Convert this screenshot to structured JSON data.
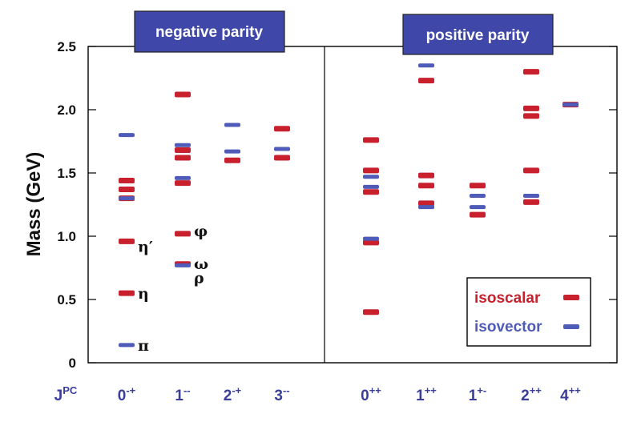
{
  "chart_data": {
    "type": "scatter",
    "ylabel": "Mass (GeV)",
    "ylim": [
      0,
      2.5
    ],
    "yticks": [
      "0",
      "0.5",
      "1.0",
      "1.5",
      "2.0",
      "2.5"
    ],
    "x_axis_label": {
      "main": "J",
      "sup": "PC"
    },
    "panels": [
      {
        "title": "negative parity",
        "title_color": "#3f48a8"
      },
      {
        "title": "positive parity",
        "title_color": "#3f48a8"
      }
    ],
    "categories": [
      {
        "main": "0",
        "sup": "-+"
      },
      {
        "main": "1",
        "sup": "--"
      },
      {
        "main": "2",
        "sup": "-+"
      },
      {
        "main": "3",
        "sup": "--"
      },
      {
        "main": "0",
        "sup": "++"
      },
      {
        "main": "1",
        "sup": "++"
      },
      {
        "main": "1",
        "sup": "+-"
      },
      {
        "main": "2",
        "sup": "++"
      },
      {
        "main": "4",
        "sup": "++"
      }
    ],
    "series": [
      {
        "name": "isoscalar",
        "color": "#c8202c",
        "points": [
          {
            "c": 0,
            "y": 0.55
          },
          {
            "c": 0,
            "y": 0.96
          },
          {
            "c": 0,
            "y": 1.3
          },
          {
            "c": 0,
            "y": 1.37
          },
          {
            "c": 0,
            "y": 1.44
          },
          {
            "c": 1,
            "y": 0.78
          },
          {
            "c": 1,
            "y": 1.02
          },
          {
            "c": 1,
            "y": 1.42
          },
          {
            "c": 1,
            "y": 1.62
          },
          {
            "c": 1,
            "y": 1.68
          },
          {
            "c": 1,
            "y": 2.12
          },
          {
            "c": 2,
            "y": 1.6
          },
          {
            "c": 3,
            "y": 1.62
          },
          {
            "c": 3,
            "y": 1.85
          },
          {
            "c": 4,
            "y": 0.4
          },
          {
            "c": 4,
            "y": 0.95
          },
          {
            "c": 4,
            "y": 1.35
          },
          {
            "c": 4,
            "y": 1.52
          },
          {
            "c": 4,
            "y": 1.76
          },
          {
            "c": 5,
            "y": 1.26
          },
          {
            "c": 5,
            "y": 1.4
          },
          {
            "c": 5,
            "y": 1.48
          },
          {
            "c": 5,
            "y": 2.23
          },
          {
            "c": 6,
            "y": 1.17
          },
          {
            "c": 6,
            "y": 1.4
          },
          {
            "c": 7,
            "y": 1.27
          },
          {
            "c": 7,
            "y": 1.52
          },
          {
            "c": 7,
            "y": 1.95
          },
          {
            "c": 7,
            "y": 2.01
          },
          {
            "c": 7,
            "y": 2.3
          },
          {
            "c": 8,
            "y": 2.04
          }
        ]
      },
      {
        "name": "isovector",
        "color": "#4f5bb8",
        "points": [
          {
            "c": 0,
            "y": 0.14
          },
          {
            "c": 0,
            "y": 1.3
          },
          {
            "c": 0,
            "y": 1.8
          },
          {
            "c": 1,
            "y": 0.77
          },
          {
            "c": 1,
            "y": 1.46
          },
          {
            "c": 1,
            "y": 1.72
          },
          {
            "c": 2,
            "y": 1.67
          },
          {
            "c": 2,
            "y": 1.88
          },
          {
            "c": 3,
            "y": 1.69
          },
          {
            "c": 4,
            "y": 0.98
          },
          {
            "c": 4,
            "y": 1.39
          },
          {
            "c": 4,
            "y": 1.47
          },
          {
            "c": 5,
            "y": 1.23
          },
          {
            "c": 5,
            "y": 2.35
          },
          {
            "c": 6,
            "y": 1.23
          },
          {
            "c": 6,
            "y": 1.32
          },
          {
            "c": 7,
            "y": 1.32
          },
          {
            "c": 8,
            "y": 2.04
          }
        ]
      }
    ],
    "annotations": [
      {
        "text": "π",
        "c": 0,
        "y": 0.14
      },
      {
        "text": "η",
        "c": 0,
        "y": 0.55
      },
      {
        "text": "η′",
        "c": 0,
        "y": 0.96
      },
      {
        "text": "φ",
        "c": 1,
        "y": 1.02
      },
      {
        "text": "ω",
        "c": 1,
        "y": 0.78
      },
      {
        "text": "ρ",
        "c": 1,
        "y": 0.77
      }
    ],
    "legend": {
      "position": "bottom-right",
      "entries": [
        "isoscalar",
        "isovector"
      ]
    }
  }
}
